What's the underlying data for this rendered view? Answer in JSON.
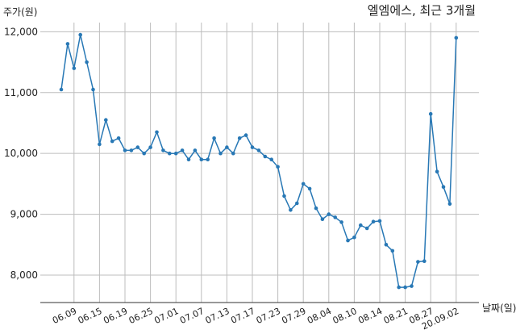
{
  "chart_data": {
    "type": "line",
    "title": "엘엠에스, 최근 3개월",
    "ylabel": "주가(원)",
    "xlabel": "날짜(일)",
    "ylim": [
      7550,
      12150
    ],
    "yticks": [
      8000,
      9000,
      10000,
      11000,
      12000
    ],
    "ytick_labels": [
      "8,000",
      "9,000",
      "10,000",
      "11,000",
      "12,000"
    ],
    "xtick_labels": [
      {
        "index": 2,
        "label": "06.09"
      },
      {
        "index": 6,
        "label": "06.15"
      },
      {
        "index": 10,
        "label": "06.19"
      },
      {
        "index": 14,
        "label": "06.25"
      },
      {
        "index": 18,
        "label": "07.01"
      },
      {
        "index": 22,
        "label": "07.07"
      },
      {
        "index": 26,
        "label": "07.13"
      },
      {
        "index": 30,
        "label": "07.17"
      },
      {
        "index": 34,
        "label": "07.23"
      },
      {
        "index": 38,
        "label": "07.29"
      },
      {
        "index": 42,
        "label": "08.04"
      },
      {
        "index": 46,
        "label": "08.10"
      },
      {
        "index": 50,
        "label": "08.14"
      },
      {
        "index": 54,
        "label": "08.21"
      },
      {
        "index": 58,
        "label": "08.27"
      },
      {
        "index": 62,
        "label": "20.09.02"
      }
    ],
    "grid": true,
    "line_color": "#2878b5",
    "series": [
      {
        "values": [
          11050,
          11800,
          11400,
          11950,
          11500,
          11050,
          10150,
          10550,
          10200,
          10250,
          10050,
          10050,
          10100,
          10000,
          10100,
          10350,
          10050,
          10000,
          10000,
          10050,
          9900,
          10050,
          9900,
          9900,
          10250,
          10000,
          10100,
          10000,
          10250,
          10300,
          10100,
          10050,
          9950,
          9900,
          9780,
          9300,
          9070,
          9180,
          9500,
          9420,
          9100,
          8920,
          9000,
          8950,
          8870,
          8570,
          8620,
          8820,
          8770,
          8880,
          8890,
          8500,
          8400,
          7800,
          7800,
          7820,
          8220,
          8230,
          10650,
          9700,
          9450,
          9170,
          11900
        ]
      }
    ]
  }
}
